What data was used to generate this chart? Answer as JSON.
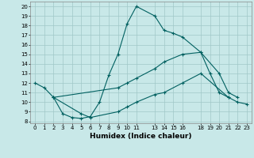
{
  "xlabel": "Humidex (Indice chaleur)",
  "bg_color": "#c8e8e8",
  "grid_color": "#a0c8c8",
  "line_color": "#006060",
  "xlim": [
    -0.5,
    23.5
  ],
  "ylim": [
    7.8,
    20.5
  ],
  "xticks": [
    0,
    1,
    2,
    3,
    4,
    5,
    6,
    7,
    8,
    9,
    10,
    11,
    13,
    14,
    15,
    16,
    18,
    19,
    20,
    21,
    22,
    23
  ],
  "yticks": [
    8,
    9,
    10,
    11,
    12,
    13,
    14,
    15,
    16,
    17,
    18,
    19,
    20
  ],
  "line1_x": [
    0,
    1,
    2,
    3,
    4,
    5,
    6,
    7,
    8,
    9,
    10,
    11,
    13,
    14,
    15,
    16,
    18,
    19,
    20,
    21
  ],
  "line1_y": [
    12.0,
    11.5,
    10.5,
    8.8,
    8.4,
    8.3,
    8.5,
    10.0,
    12.8,
    15.0,
    18.2,
    20.0,
    19.0,
    17.5,
    17.2,
    16.8,
    15.2,
    13.0,
    11.0,
    10.5
  ],
  "line2_x": [
    2,
    9,
    10,
    11,
    13,
    14,
    16,
    18,
    20,
    21,
    22
  ],
  "line2_y": [
    10.5,
    11.5,
    12.0,
    12.5,
    13.5,
    14.2,
    15.0,
    15.2,
    13.0,
    11.0,
    10.5
  ],
  "line3_x": [
    2,
    5,
    6,
    9,
    10,
    11,
    13,
    14,
    16,
    18,
    21,
    22,
    23
  ],
  "line3_y": [
    10.5,
    8.8,
    8.4,
    9.0,
    9.5,
    10.0,
    10.8,
    11.0,
    12.0,
    13.0,
    10.5,
    10.0,
    9.8
  ]
}
